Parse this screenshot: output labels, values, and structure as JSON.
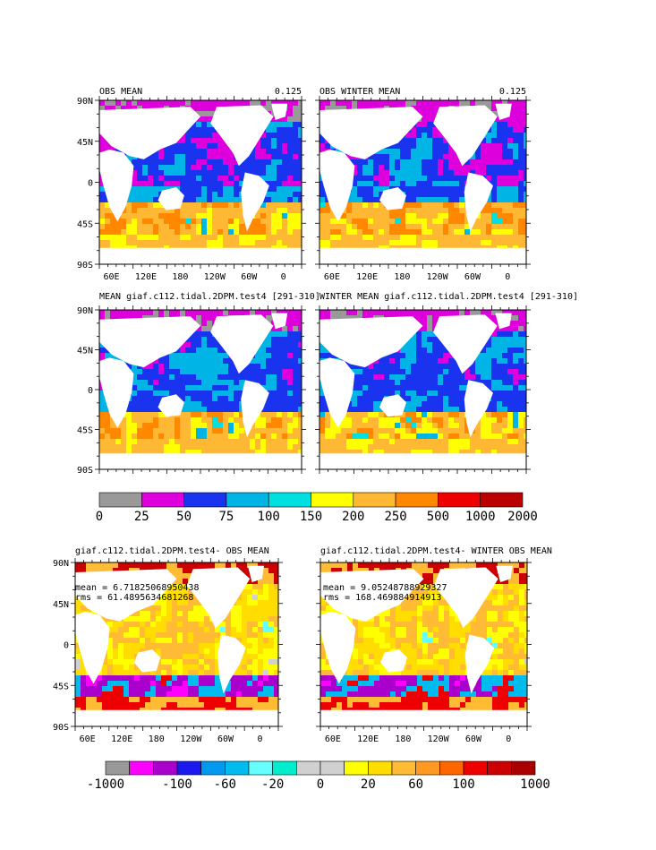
{
  "top_panels": [
    {
      "title_left": "OBS MEAN",
      "title_right": "0.125",
      "kind": "abs_obs"
    },
    {
      "title_left": "OBS WINTER MEAN",
      "title_right": "0.125",
      "kind": "abs_obs_w"
    },
    {
      "title_left": "MEAN giaf.c112.tidal.2DPM.test4 [291-310]",
      "title_right": "",
      "kind": "abs_mod"
    },
    {
      "title_left": "WINTER MEAN giaf.c112.tidal.2DPM.test4 [291-310]",
      "title_right": "",
      "kind": "abs_mod_w"
    }
  ],
  "diff_panels": [
    {
      "title": "giaf.c112.tidal.2DPM.test4- OBS MEAN",
      "mean_text": "mean = 6.71825068950438",
      "rms_text": "rms = 61.4895634681268",
      "kind": "diff"
    },
    {
      "title": "giaf.c112.tidal.2DPM.test4- WINTER OBS MEAN",
      "mean_text": "mean = 9.05248788929327",
      "rms_text": "rms = 168.469884914913",
      "kind": "diff_w"
    }
  ],
  "lat_labels": [
    "90N",
    "45N",
    "0",
    "45S",
    "90S"
  ],
  "lon_labels_top": [
    "60E",
    "120E",
    "180",
    "120W",
    "60W",
    "0"
  ],
  "lon_labels_bottom": [
    "60E",
    "120E",
    "180",
    "120W",
    "60W",
    "0"
  ],
  "colorbar1": {
    "colors": [
      "#999999",
      "#dd00dd",
      "#1a33ee",
      "#00b4e6",
      "#00e0e0",
      "#ffff00",
      "#ffb833",
      "#ff8800",
      "#ee0000",
      "#bb0000"
    ],
    "labels": [
      "0",
      "25",
      "50",
      "75",
      "100",
      "150",
      "200",
      "250",
      "500",
      "1000",
      "2000"
    ]
  },
  "colorbar2": {
    "colors": [
      "#999999",
      "#ff00ff",
      "#aa00cc",
      "#1a1aee",
      "#0099ee",
      "#00bbee",
      "#66ffff",
      "#00eecc",
      "#d0d0d0",
      "#d0d0d0",
      "#ffff00",
      "#ffdd00",
      "#ffbb33",
      "#ff9922",
      "#ff6600",
      "#ee0000",
      "#cc0000",
      "#aa0000"
    ],
    "labels": [
      "-1000",
      "-100",
      "-60",
      "-20",
      "0",
      "20",
      "60",
      "100",
      "1000"
    ]
  },
  "colors": {
    "land": "#ffffff",
    "nodata": "#999999",
    "frame": "#000000"
  }
}
